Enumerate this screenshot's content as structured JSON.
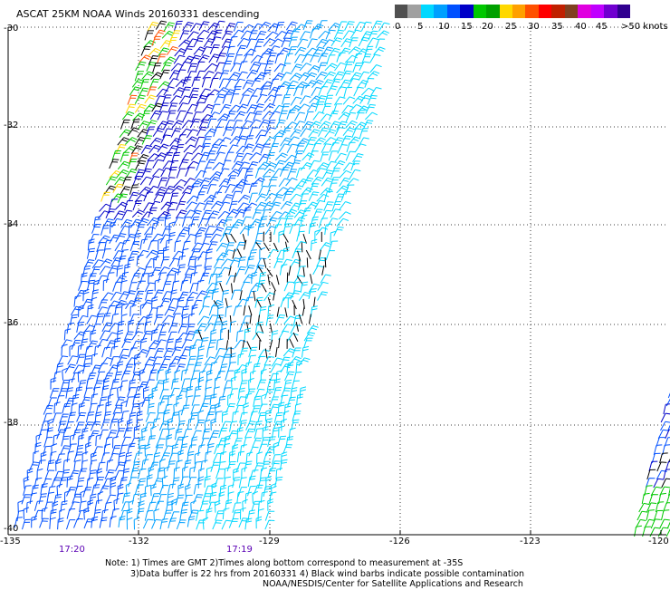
{
  "title": "ASCAT 25KM NOAA Winds 20160331 descending",
  "legend": {
    "colors": [
      "#505050",
      "#a0a0a0",
      "#00d8ff",
      "#00a0ff",
      "#0050ff",
      "#0000c8",
      "#00c800",
      "#00a000",
      "#ffd800",
      "#ffa000",
      "#ff5000",
      "#ff0000",
      "#c02000",
      "#804020",
      "#e000e0",
      "#c000ff",
      "#7000d0",
      "#300090"
    ],
    "labels": [
      "0",
      "5",
      "10",
      "15",
      "20",
      "25",
      "30",
      "35",
      "40",
      "45",
      ">50 knots"
    ]
  },
  "y_axis_labels": [
    "-30",
    "-32",
    "-34",
    "-36",
    "-38",
    "-40"
  ],
  "x_axis_labels": [
    "-135",
    "-132",
    "-129",
    "-126",
    "-123",
    "-120"
  ],
  "pass_times": [
    "17:20",
    "17:19"
  ],
  "notes": [
    "Note: 1) Times are GMT 2)Times along bottom correspond to measurement at -35S",
    "3)Data buffer is 22 hrs from 20160331 4) Black wind barbs indicate possible contamination",
    "NOAA/NESDIS/Center for Satellite Applications and Research"
  ]
}
